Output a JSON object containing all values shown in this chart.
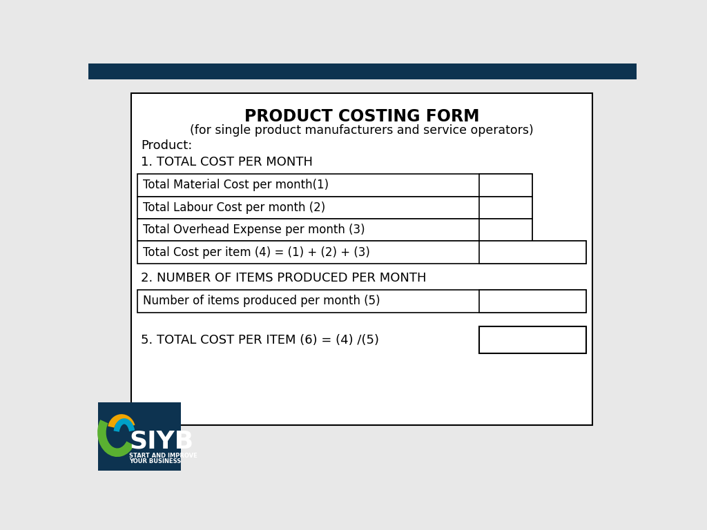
{
  "title": "PRODUCT COSTING FORM",
  "subtitle": "(for single product manufacturers and service operators)",
  "product_label": "Product:",
  "section1_title": "1. TOTAL COST PER MONTH",
  "section2_title": "2. NUMBER OF ITEMS PRODUCED PER MONTH",
  "section5_title": "5. TOTAL COST PER ITEM (6) = (4) /(5)",
  "rows_section1": [
    "Total Material Cost per month(1)",
    "Total Labour Cost per month (2)",
    "Total Overhead Expense per month (3)",
    "Total Cost per item (4) = (1) + (2) + (3)"
  ],
  "rows_section2": [
    "Number of items produced per month (5)"
  ],
  "bg_color": "#e8e8e8",
  "header_bar_color": "#0d3350",
  "form_bg": "#ffffff",
  "form_border": "#000000",
  "table_border": "#000000",
  "logo_bg": "#0d3350",
  "logo_text_color": "#ffffff",
  "logo_green": "#5ab031",
  "logo_orange": "#f0a500",
  "logo_blue": "#00a0c8"
}
